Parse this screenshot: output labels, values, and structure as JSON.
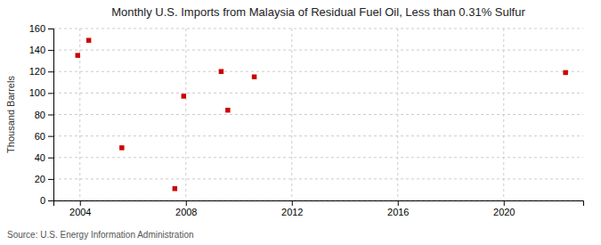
{
  "chart_data": {
    "type": "scatter",
    "title": "Monthly U.S. Imports from Malaysia of Residual Fuel Oil, Less than 0.31% Sulfur",
    "ylabel": "Thousand Barrels",
    "source": "Source: U.S. Energy Information Administration",
    "x": [
      2003.917,
      2004.333,
      2005.583,
      2007.583,
      2007.917,
      2009.333,
      2009.583,
      2010.583,
      2022.333
    ],
    "values": [
      135,
      149,
      49,
      11,
      97,
      120,
      84,
      115,
      119
    ],
    "color": "#cc0000",
    "marker": "square",
    "xlim": [
      2003,
      2023
    ],
    "ylim": [
      0,
      160
    ],
    "xticks": [
      2004,
      2008,
      2012,
      2016,
      2020
    ],
    "yticks": [
      0,
      20,
      40,
      60,
      80,
      100,
      120,
      140,
      160
    ],
    "grid": true
  }
}
